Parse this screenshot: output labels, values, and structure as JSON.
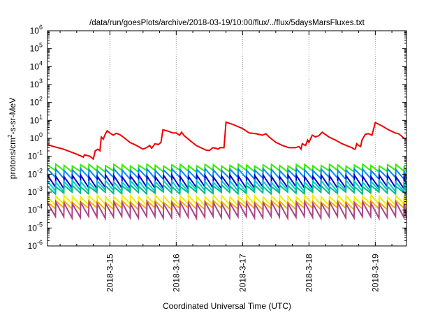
{
  "chart_data": {
    "type": "line",
    "title": "/data/run/goesPlots/archive/2018-03-19/10:00/flux/../flux/5daysMarsFluxes.txt",
    "xlabel": "Coordinated Universal Time (UTC)",
    "ylabel": "protons/cm2-s-sr-MeV",
    "ylabel_parts": {
      "pre": "protons/cm",
      "sup": "2",
      "post": "-s-sr-MeV"
    },
    "yscale": "log",
    "ylim_exp": [
      -6,
      6
    ],
    "y_tick_exponents": [
      -6,
      -5,
      -4,
      -3,
      -2,
      -1,
      0,
      1,
      2,
      3,
      4,
      5,
      6
    ],
    "y_tick_base": "10",
    "x_start_date": "2018-03-14T00:00",
    "x_end_date": "2018-03-19T10:00",
    "xlim_days": [
      14.06,
      19.47
    ],
    "x_ticks": [
      {
        "day": 15,
        "label": "2018-3-15"
      },
      {
        "day": 16,
        "label": "2018-3-16"
      },
      {
        "day": 17,
        "label": "2018-3-17"
      },
      {
        "day": 18,
        "label": "2018-3-18"
      },
      {
        "day": 19,
        "label": "2018-3-19"
      }
    ],
    "grid": "x-only dotted",
    "series": [
      {
        "color": "#ee0000",
        "shape": "events",
        "points": [
          [
            14.06,
            0.45
          ],
          [
            14.15,
            0.35
          ],
          [
            14.3,
            0.25
          ],
          [
            14.5,
            0.13
          ],
          [
            14.6,
            0.09
          ],
          [
            14.62,
            0.12
          ],
          [
            14.7,
            0.1
          ],
          [
            14.75,
            0.07
          ],
          [
            14.78,
            0.2
          ],
          [
            14.82,
            0.25
          ],
          [
            14.85,
            0.2
          ],
          [
            14.87,
            1.2
          ],
          [
            14.9,
            0.9
          ],
          [
            14.93,
            1.7
          ],
          [
            14.96,
            2.6
          ],
          [
            15.0,
            2.0
          ],
          [
            15.05,
            1.5
          ],
          [
            15.1,
            1.9
          ],
          [
            15.15,
            1.6
          ],
          [
            15.2,
            1.2
          ],
          [
            15.3,
            0.6
          ],
          [
            15.4,
            0.4
          ],
          [
            15.5,
            0.25
          ],
          [
            15.55,
            0.3
          ],
          [
            15.6,
            0.4
          ],
          [
            15.63,
            0.28
          ],
          [
            15.68,
            0.5
          ],
          [
            15.73,
            0.45
          ],
          [
            15.77,
            0.6
          ],
          [
            15.8,
            3.0
          ],
          [
            15.88,
            2.5
          ],
          [
            15.95,
            2.0
          ],
          [
            16.0,
            2.0
          ],
          [
            16.05,
            1.5
          ],
          [
            16.08,
            2.2
          ],
          [
            16.12,
            1.4
          ],
          [
            16.2,
            0.8
          ],
          [
            16.3,
            0.4
          ],
          [
            16.45,
            0.22
          ],
          [
            16.5,
            0.21
          ],
          [
            16.55,
            0.3
          ],
          [
            16.6,
            0.28
          ],
          [
            16.63,
            0.25
          ],
          [
            16.66,
            0.3
          ],
          [
            16.7,
            0.3
          ],
          [
            16.72,
            0.3
          ],
          [
            16.75,
            8.0
          ],
          [
            16.85,
            6.0
          ],
          [
            17.0,
            3.5
          ],
          [
            17.1,
            2.0
          ],
          [
            17.2,
            1.8
          ],
          [
            17.3,
            1.5
          ],
          [
            17.35,
            1.8
          ],
          [
            17.4,
            1.2
          ],
          [
            17.5,
            0.6
          ],
          [
            17.6,
            0.4
          ],
          [
            17.7,
            0.3
          ],
          [
            17.8,
            0.3
          ],
          [
            17.85,
            0.35
          ],
          [
            17.88,
            0.25
          ],
          [
            17.9,
            0.5
          ],
          [
            17.95,
            0.4
          ],
          [
            17.98,
            0.8
          ],
          [
            18.0,
            0.6
          ],
          [
            18.05,
            1.5
          ],
          [
            18.1,
            1.2
          ],
          [
            18.15,
            1.4
          ],
          [
            18.2,
            2.2
          ],
          [
            18.3,
            1.2
          ],
          [
            18.4,
            0.8
          ],
          [
            18.5,
            0.5
          ],
          [
            18.6,
            0.35
          ],
          [
            18.65,
            0.3
          ],
          [
            18.68,
            0.25
          ],
          [
            18.7,
            0.25
          ],
          [
            18.72,
            0.5
          ],
          [
            18.75,
            0.4
          ],
          [
            18.78,
            0.35
          ],
          [
            18.8,
            0.8
          ],
          [
            18.85,
            1.7
          ],
          [
            18.9,
            1.8
          ],
          [
            18.95,
            1.5
          ],
          [
            19.0,
            7.5
          ],
          [
            19.1,
            5.0
          ],
          [
            19.2,
            3.0
          ],
          [
            19.3,
            2.0
          ],
          [
            19.35,
            1.8
          ],
          [
            19.4,
            1.3
          ],
          [
            19.43,
            1.0
          ],
          [
            19.47,
            1.0
          ]
        ]
      },
      {
        "color": "#33ee00",
        "shape": "sawtooth",
        "hi": 0.032,
        "lo": 0.015,
        "period_days": 0.125
      },
      {
        "color": "#0088ff",
        "shape": "sawtooth",
        "hi": 0.018,
        "lo": 0.006,
        "period_days": 0.125
      },
      {
        "color": "#0000cc",
        "shape": "sawtooth",
        "hi": 0.008,
        "lo": 0.0018,
        "period_days": 0.125
      },
      {
        "color": "#00cccc",
        "shape": "sawtooth",
        "hi": 0.004,
        "lo": 0.0012,
        "period_days": 0.125
      },
      {
        "color": "#00bb88",
        "shape": "sawtooth",
        "hi": 0.0022,
        "lo": 0.0009,
        "period_days": 0.125
      },
      {
        "color": "#eeee00",
        "shape": "sawtooth",
        "hi": 0.0006,
        "lo": 0.0002,
        "period_days": 0.125
      },
      {
        "color": "#ffaa00",
        "shape": "sawtooth",
        "hi": 0.0003,
        "lo": 0.00012,
        "period_days": 0.125
      },
      {
        "color": "#aa4488",
        "shape": "sawtooth",
        "hi": 0.00025,
        "lo": 4e-05,
        "period_days": 0.125
      }
    ]
  }
}
